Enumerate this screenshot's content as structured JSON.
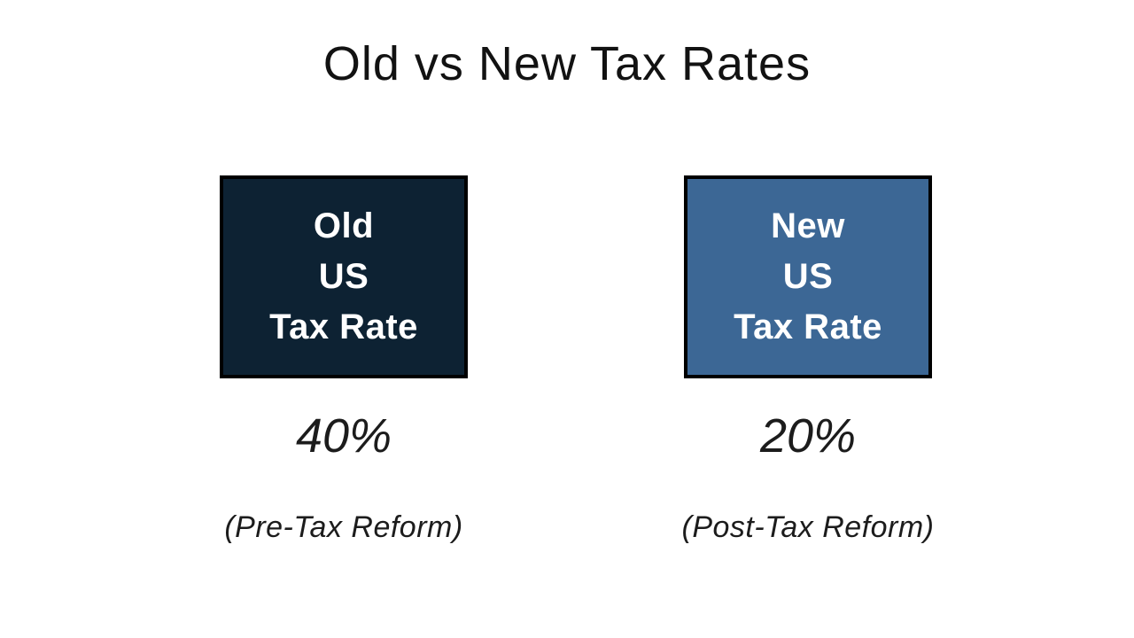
{
  "title": "Old vs New Tax Rates",
  "colors": {
    "background": "#ffffff",
    "old_box_fill": "#0d2233",
    "new_box_fill": "#3c6795",
    "box_border": "#000000",
    "box_text": "#ffffff",
    "text": "#1c1c1c"
  },
  "columns": [
    {
      "name": "old",
      "box_lines": [
        "Old",
        "US",
        "Tax Rate"
      ],
      "box_color": "#0d2233",
      "value": "40%",
      "caption": "(Pre-Tax Reform)"
    },
    {
      "name": "new",
      "box_lines": [
        "New",
        "US",
        "Tax Rate"
      ],
      "box_color": "#3c6795",
      "value": "20%",
      "caption": "(Post-Tax Reform)"
    }
  ]
}
